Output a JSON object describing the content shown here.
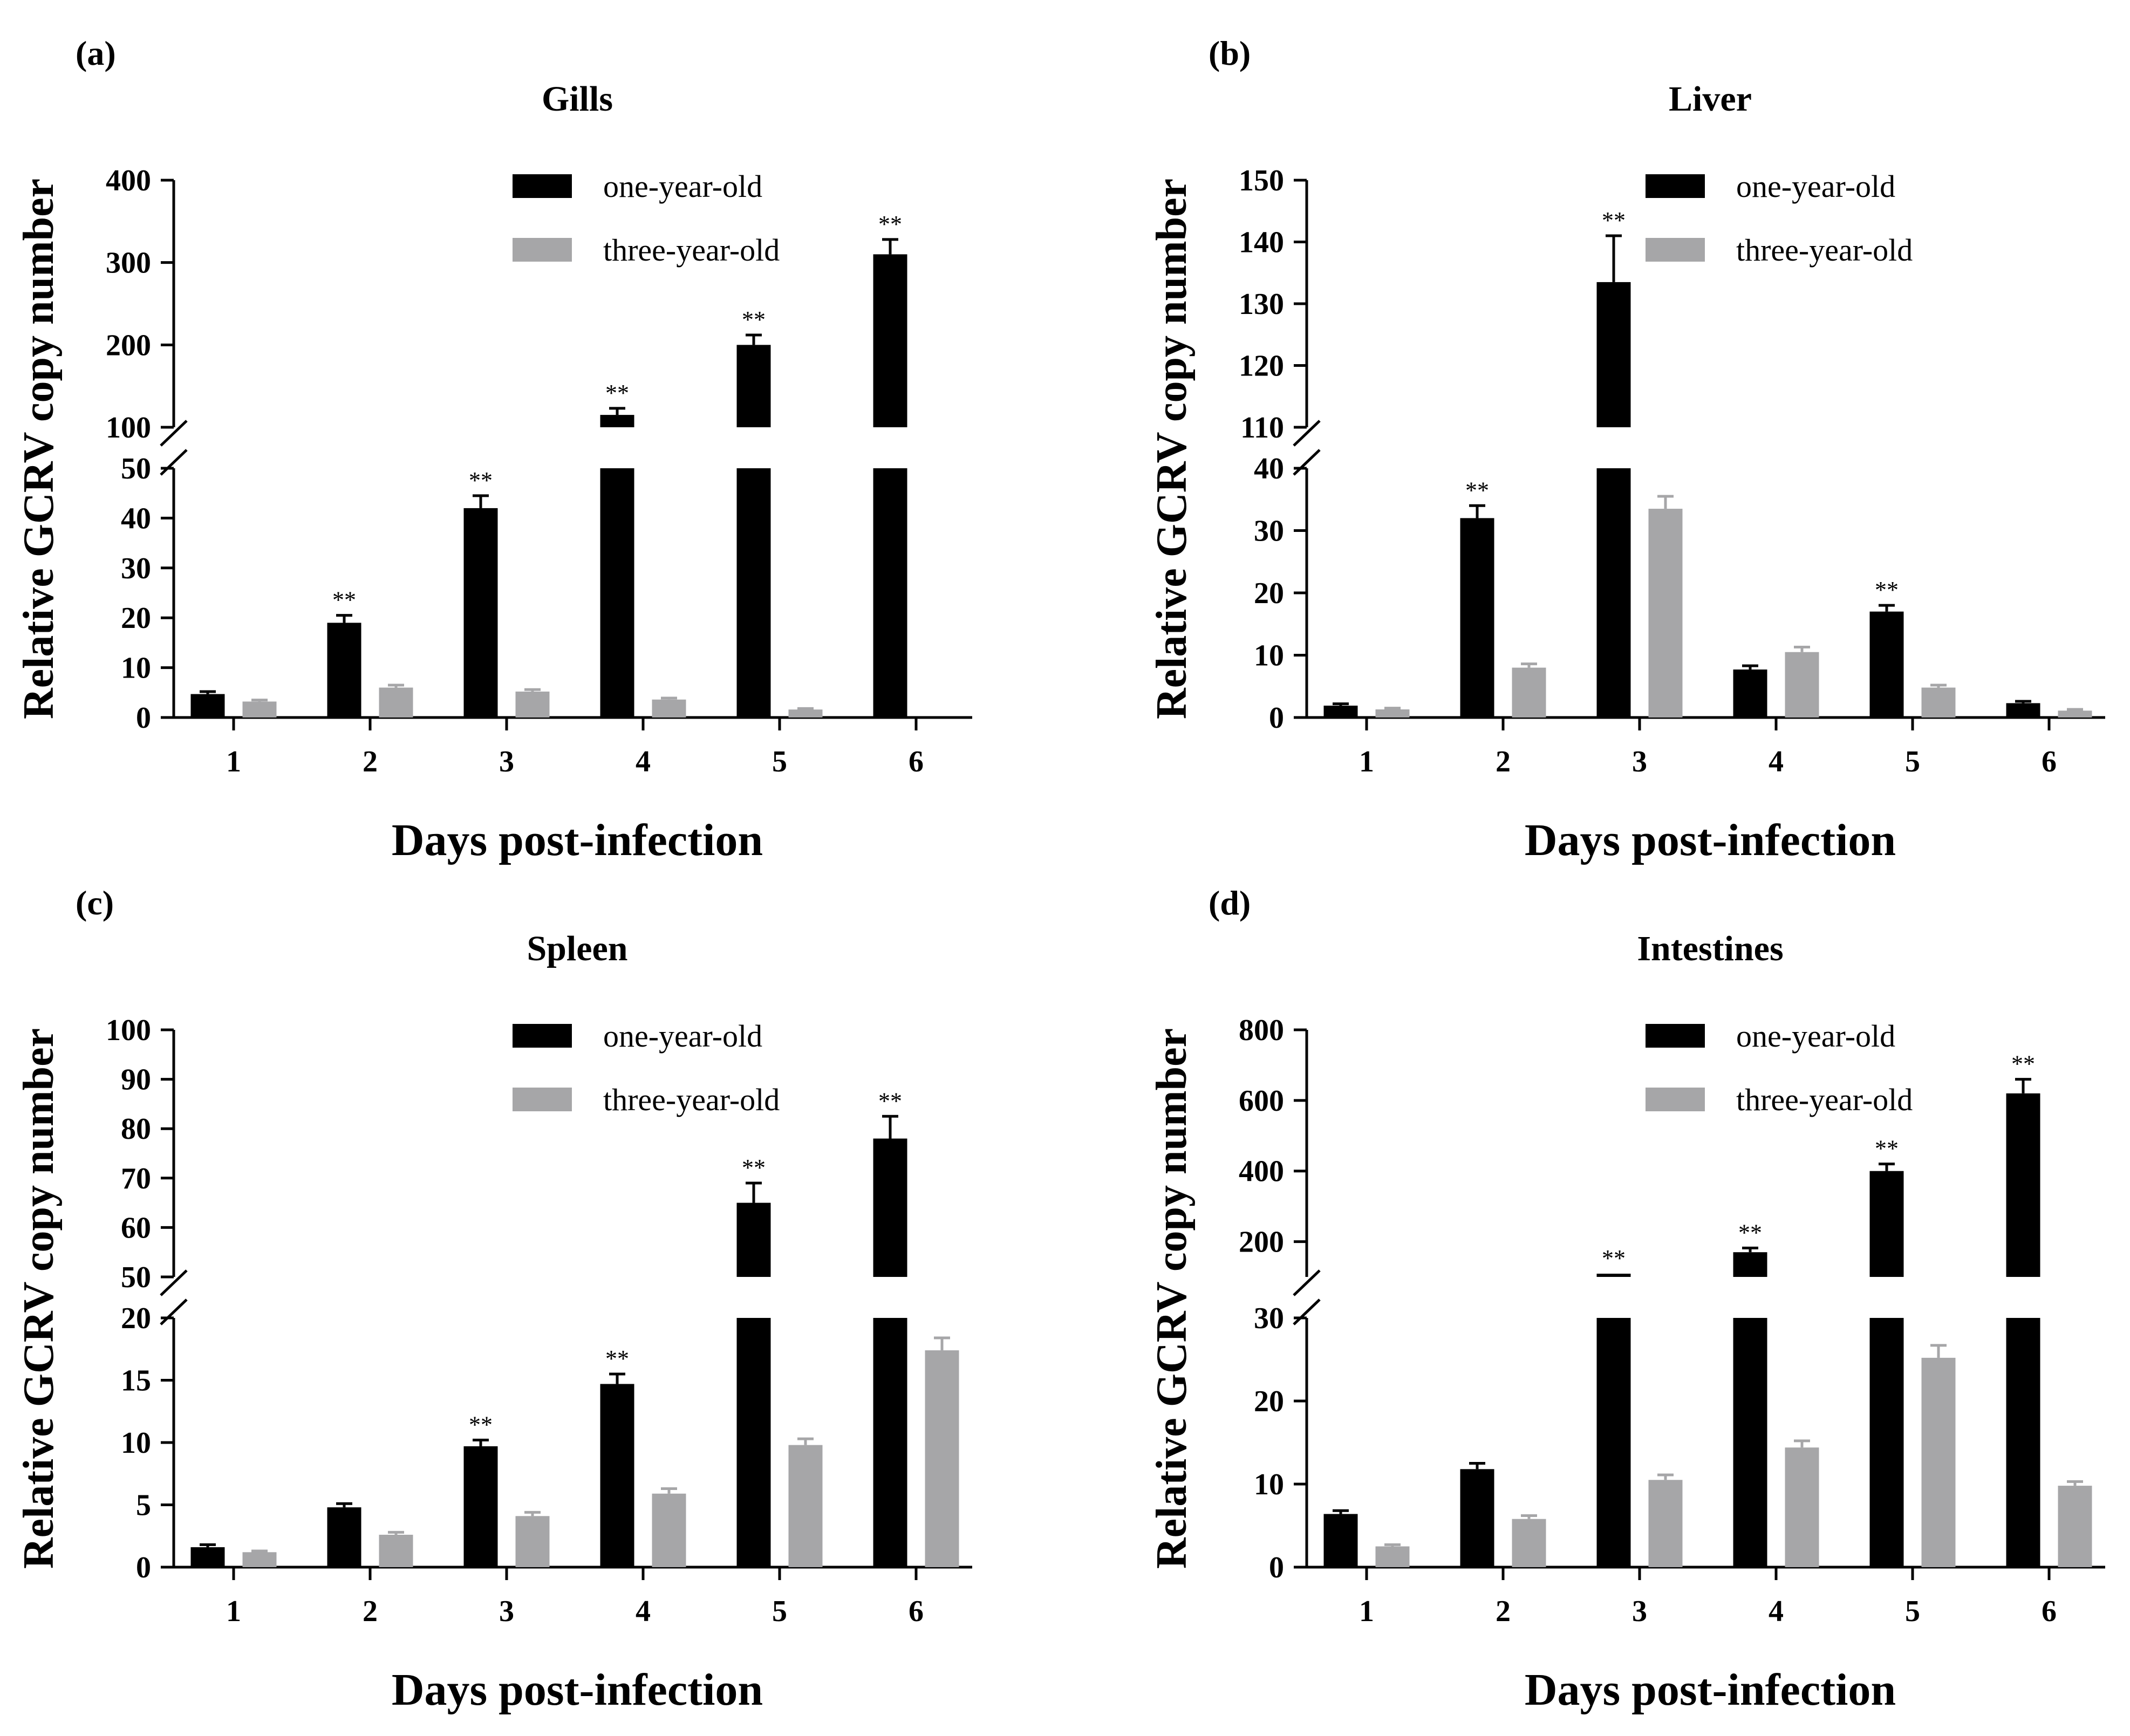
{
  "figure": {
    "legend_labels": [
      "one-year-old",
      "three-year-old"
    ],
    "colors": {
      "series1": "#000000",
      "series2": "#a6a6a8",
      "axis": "#000000"
    }
  },
  "chart_data": [
    {
      "type": "bar",
      "panel_label": "(a)",
      "title": "Gills",
      "xlabel": "Days post-infection",
      "ylabel": "Relative GCRV copy number",
      "categories": [
        "1",
        "2",
        "3",
        "4",
        "5",
        "6"
      ],
      "broken_axis": {
        "lower": {
          "ylim": [
            0,
            50
          ],
          "ticks": [
            0,
            10,
            20,
            30,
            40,
            50
          ]
        },
        "upper": {
          "ylim": [
            100,
            400
          ],
          "ticks": [
            100,
            200,
            300,
            400
          ]
        }
      },
      "legend_position": "top-right",
      "series": [
        {
          "name": "one-year-old",
          "values": [
            4.7,
            19,
            42,
            115,
            200,
            310
          ],
          "errors": [
            0.5,
            1.5,
            2.5,
            8,
            12,
            18
          ],
          "significance": [
            "",
            "**",
            "**",
            "**",
            "**",
            "**"
          ]
        },
        {
          "name": "three-year-old",
          "values": [
            3.2,
            6,
            5.2,
            3.6,
            1.6,
            0
          ],
          "errors": [
            0.3,
            0.5,
            0.4,
            0.3,
            0.2,
            0
          ],
          "significance": [
            "",
            "",
            "",
            "",
            "",
            ""
          ]
        }
      ]
    },
    {
      "type": "bar",
      "panel_label": "(b)",
      "title": "Liver",
      "xlabel": "Days post-infection",
      "ylabel": "Relative GCRV copy number",
      "categories": [
        "1",
        "2",
        "3",
        "4",
        "5",
        "6"
      ],
      "broken_axis": {
        "lower": {
          "ylim": [
            0,
            40
          ],
          "ticks": [
            0,
            10,
            20,
            30,
            40
          ]
        },
        "upper": {
          "ylim": [
            110,
            150
          ],
          "ticks": [
            110,
            120,
            130,
            140,
            150
          ]
        }
      },
      "legend_position": "top-right",
      "series": [
        {
          "name": "one-year-old",
          "values": [
            1.9,
            32,
            133.5,
            7.7,
            17,
            2.3
          ],
          "errors": [
            0.3,
            2,
            7.5,
            0.6,
            1,
            0.3
          ],
          "significance": [
            "",
            "**",
            "**",
            "",
            "**",
            ""
          ]
        },
        {
          "name": "three-year-old",
          "values": [
            1.3,
            8,
            33.5,
            10.5,
            4.8,
            1.1
          ],
          "errors": [
            0.2,
            0.6,
            2,
            0.8,
            0.4,
            0.2
          ],
          "significance": [
            "",
            "",
            "",
            "",
            "",
            ""
          ]
        }
      ]
    },
    {
      "type": "bar",
      "panel_label": "(c)",
      "title": "Spleen",
      "xlabel": "Days post-infection",
      "ylabel": "Relative GCRV copy number",
      "categories": [
        "1",
        "2",
        "3",
        "4",
        "5",
        "6"
      ],
      "broken_axis": {
        "lower": {
          "ylim": [
            0,
            20
          ],
          "ticks": [
            0,
            5,
            10,
            15,
            20
          ]
        },
        "upper": {
          "ylim": [
            50,
            100
          ],
          "ticks": [
            50,
            60,
            70,
            80,
            90,
            100
          ]
        }
      },
      "legend_position": "top-right",
      "series": [
        {
          "name": "one-year-old",
          "values": [
            1.6,
            4.8,
            9.7,
            14.7,
            65,
            78
          ],
          "errors": [
            0.2,
            0.3,
            0.5,
            0.8,
            4,
            4.5
          ],
          "significance": [
            "",
            "",
            "**",
            "**",
            "**",
            "**"
          ]
        },
        {
          "name": "three-year-old",
          "values": [
            1.2,
            2.6,
            4.1,
            5.9,
            9.8,
            17.4
          ],
          "errors": [
            0.1,
            0.2,
            0.3,
            0.4,
            0.5,
            1
          ],
          "significance": [
            "",
            "",
            "",
            "",
            "",
            ""
          ]
        }
      ]
    },
    {
      "type": "bar",
      "panel_label": "(d)",
      "title": "Intestines",
      "xlabel": "Days post-infection",
      "ylabel": "Relative GCRV copy number",
      "categories": [
        "1",
        "2",
        "3",
        "4",
        "5",
        "6"
      ],
      "broken_axis": {
        "lower": {
          "ylim": [
            0,
            30
          ],
          "ticks": [
            0,
            10,
            20,
            30
          ]
        },
        "upper": {
          "ylim": [
            100,
            800
          ],
          "ticks": [
            200,
            400,
            600,
            800
          ]
        }
      },
      "legend_position": "top-right",
      "series": [
        {
          "name": "one-year-old",
          "values": [
            6.4,
            11.8,
            100,
            170,
            400,
            620
          ],
          "errors": [
            0.4,
            0.7,
            0,
            12,
            20,
            40
          ],
          "significance": [
            "",
            "",
            "**",
            "**",
            "**",
            "**"
          ]
        },
        {
          "name": "three-year-old",
          "values": [
            2.5,
            5.8,
            10.5,
            14.4,
            25.2,
            9.8
          ],
          "errors": [
            0.2,
            0.4,
            0.6,
            0.8,
            1.5,
            0.5
          ],
          "significance": [
            "",
            "",
            "",
            "",
            "",
            ""
          ]
        }
      ]
    }
  ]
}
